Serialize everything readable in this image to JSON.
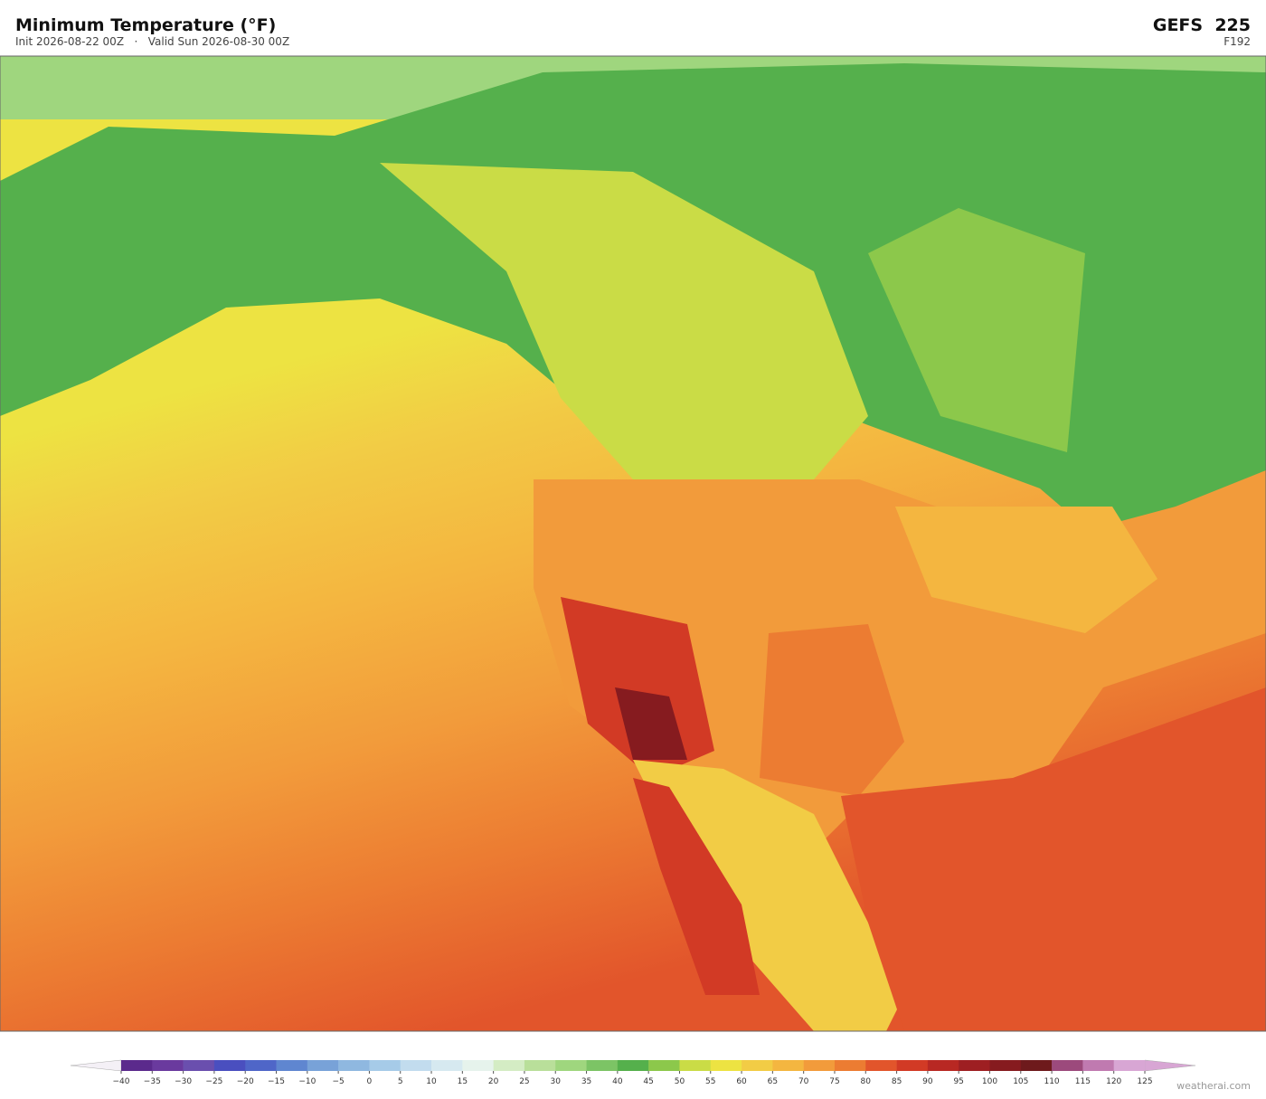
{
  "header": {
    "title": "Minimum Temperature  (°F)",
    "subtitle": "Init 2026-08-22 00Z   ·   Valid Sun 2026-08-30 00Z",
    "model": "GEFS  225",
    "forecast_hour": "F192"
  },
  "colorbar": {
    "ticks": [
      {
        "value": -40,
        "label": "−40"
      },
      {
        "value": -35,
        "label": "−35"
      },
      {
        "value": -30,
        "label": "−30"
      },
      {
        "value": -25,
        "label": "−25"
      },
      {
        "value": -20,
        "label": "−20"
      },
      {
        "value": -15,
        "label": "−15"
      },
      {
        "value": -10,
        "label": "−10"
      },
      {
        "value": -5,
        "label": "−5"
      },
      0,
      5,
      10,
      15,
      20,
      25,
      30,
      35,
      40,
      45,
      50,
      55,
      60,
      65,
      70,
      75,
      80,
      85,
      90,
      95,
      100,
      105,
      110,
      115,
      120,
      125
    ],
    "colors": [
      "#5b2a8c",
      "#6a3a9e",
      "#6a4fae",
      "#4a4fbf",
      "#4f66c8",
      "#5f86d0",
      "#78a2d8",
      "#8fb8e0",
      "#a6cbe8",
      "#c2dcee",
      "#d6e9f0",
      "#e6f3ec",
      "#d4ecc4",
      "#b9df9a",
      "#9fd67e",
      "#7cc465",
      "#55b04c",
      "#8cc84b",
      "#cadc46",
      "#ede342",
      "#f2cc45",
      "#f4b640",
      "#f29b3b",
      "#ec7c32",
      "#e2552b",
      "#d23a25",
      "#b82823",
      "#9e1f22",
      "#861b1f",
      "#6e1a1c",
      "#9c4a7c",
      "#c07ab0",
      "#d8a6d4"
    ],
    "under_color": "#f4f0f6",
    "over_color": "#d8a6d4"
  },
  "watermark": "weatherai.com"
}
